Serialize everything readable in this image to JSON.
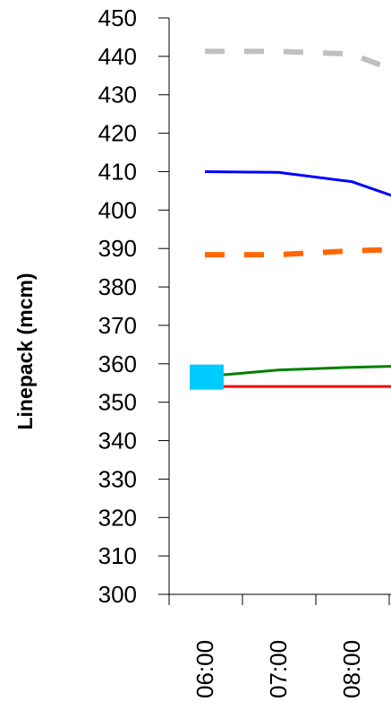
{
  "chart_data": {
    "type": "line",
    "title": "",
    "xlabel": "",
    "ylabel": "Linepack (mcm)",
    "ylim": [
      300,
      450
    ],
    "y_ticks": [
      "300",
      "310",
      "320",
      "330",
      "340",
      "350",
      "360",
      "370",
      "380",
      "390",
      "400",
      "410",
      "420",
      "430",
      "440",
      "450"
    ],
    "categories": [
      "06:00",
      "07:00",
      "08:00"
    ],
    "grid": false,
    "legend": "none",
    "series": [
      {
        "color": "#c0c0c0",
        "style": "dashed",
        "x": [
          "06:00",
          "07:00",
          "08:00",
          "08:40"
        ],
        "values": [
          441.3,
          441.3,
          440.6,
          435.8
        ]
      },
      {
        "color": "#0000ff",
        "style": "solid",
        "x": [
          "06:00",
          "07:00",
          "08:00",
          "08:40"
        ],
        "values": [
          410.0,
          409.8,
          407.4,
          403.0
        ]
      },
      {
        "color": "#ff6600",
        "style": "dashed",
        "x": [
          "06:00",
          "07:00",
          "08:00",
          "08:40"
        ],
        "values": [
          388.4,
          388.4,
          389.4,
          389.8
        ]
      },
      {
        "color": "#008000",
        "style": "solid",
        "x": [
          "06:00",
          "07:00",
          "08:00",
          "08:40"
        ],
        "values": [
          356.7,
          358.4,
          359.1,
          359.4
        ]
      },
      {
        "color": "#ff0000",
        "style": "solid",
        "x": [
          "06:00",
          "07:00",
          "08:00",
          "08:40"
        ],
        "values": [
          354.1,
          354.1,
          354.1,
          354.1
        ]
      }
    ],
    "marker": {
      "shape": "square",
      "color": "#00ccff",
      "x": "06:00",
      "value": 356.3
    }
  }
}
